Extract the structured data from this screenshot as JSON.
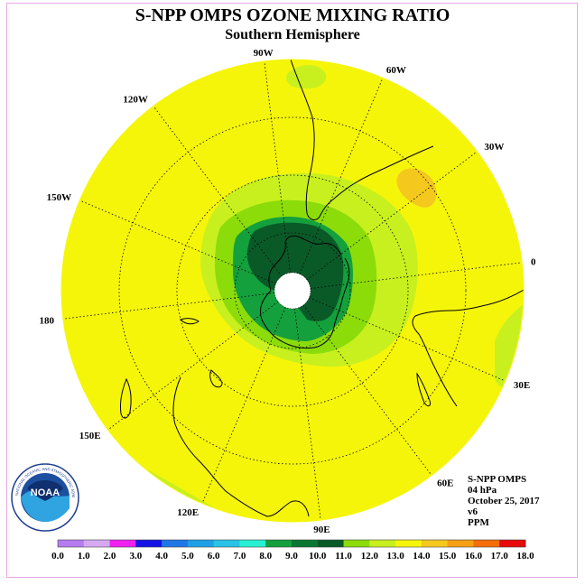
{
  "title": "S-NPP OMPS OZONE MIXING RATIO",
  "subtitle": "Southern Hemisphere",
  "lon_labels": [
    "0",
    "30E",
    "60E",
    "90E",
    "120E",
    "150E",
    "180",
    "150W",
    "120W",
    "90W",
    "60W",
    "30W"
  ],
  "info": {
    "instrument": "S-NPP OMPS",
    "level": "04 hPa",
    "date": "October 25, 2017",
    "version": "v6",
    "units": "PPM"
  },
  "logo": {
    "name": "noaa-logo",
    "text": "NOAA",
    "ring_text": "NATIONAL OCEANIC AND ATMOSPHERIC ADMINISTRATION · U.S. DEPARTMENT OF COMMERCE"
  },
  "colorbar": {
    "ticks": [
      "0.0",
      "1.0",
      "2.0",
      "3.0",
      "4.0",
      "5.0",
      "6.0",
      "7.0",
      "8.0",
      "9.0",
      "10.0",
      "11.0",
      "12.0",
      "13.0",
      "14.0",
      "15.0",
      "16.0",
      "17.0",
      "18.0"
    ],
    "colors": [
      "#b57cf0",
      "#d6a8f2",
      "#f020f0",
      "#1414e6",
      "#1e78e6",
      "#1ea0e6",
      "#28c3e6",
      "#28f0d2",
      "#14a03c",
      "#0a7832",
      "#0a5a28",
      "#8cdc0a",
      "#c8f01e",
      "#f5f50a",
      "#f5c81e",
      "#f5a014",
      "#f56e0a",
      "#e60a0a",
      "#7a5a3c"
    ]
  },
  "colors": {
    "background_field": "#f5f50a",
    "green_10_11": "#8cdc0a",
    "green_11_12": "#c8f01e",
    "green_9_10": "#0a7832",
    "green_10": "#14a03c",
    "dark_green": "#0a5a28",
    "orange_13_14": "#f5c81e",
    "polar_hole": "#ffffff"
  }
}
